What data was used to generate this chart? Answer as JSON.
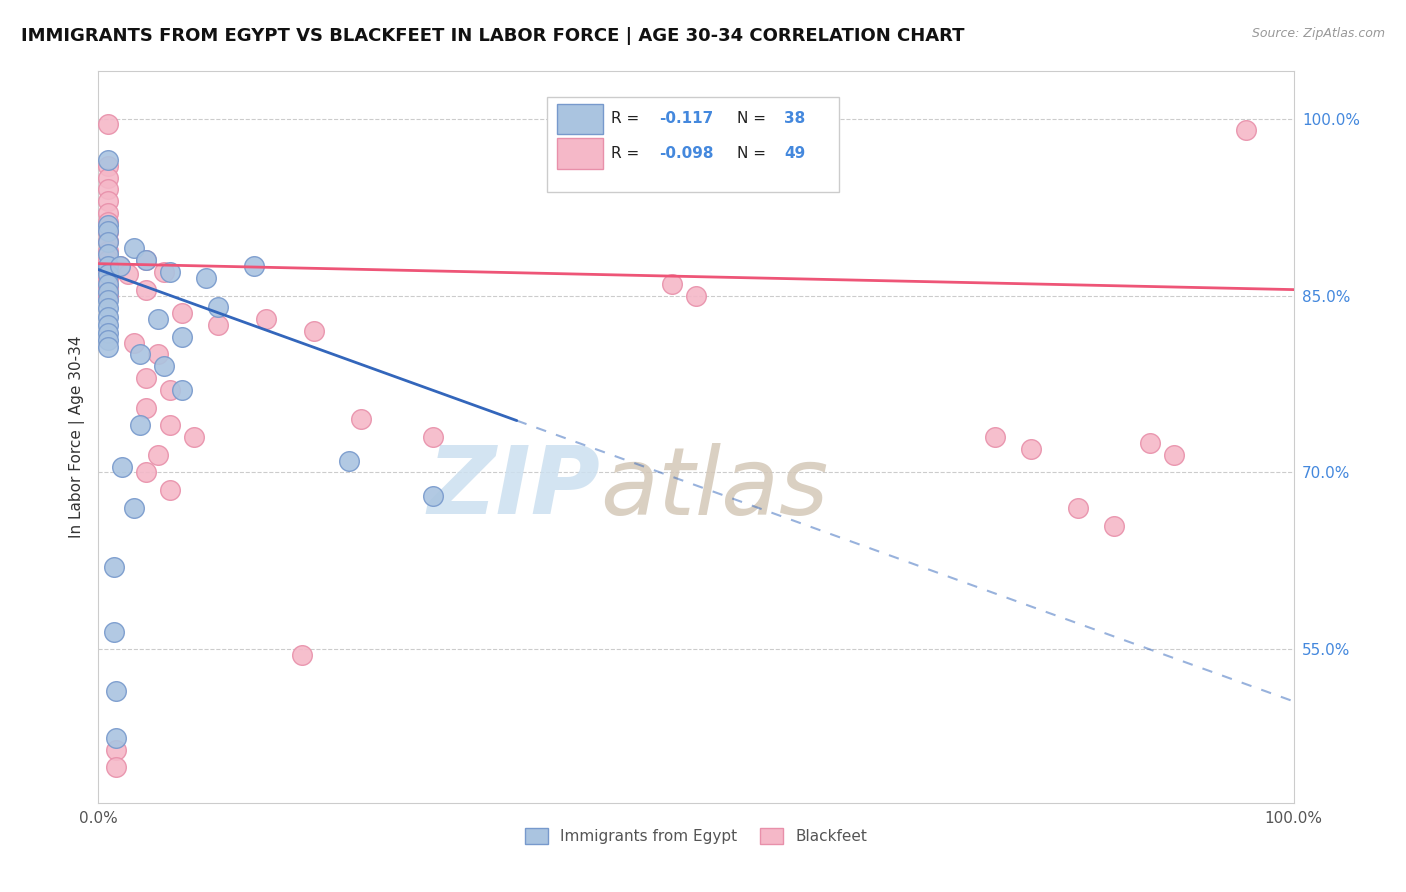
{
  "title": "IMMIGRANTS FROM EGYPT VS BLACKFEET IN LABOR FORCE | AGE 30-34 CORRELATION CHART",
  "source": "Source: ZipAtlas.com",
  "ylabel": "In Labor Force | Age 30-34",
  "xlim": [
    0.0,
    1.0
  ],
  "ylim": [
    0.42,
    1.04
  ],
  "yticks": [
    0.55,
    0.7,
    0.85,
    1.0
  ],
  "ytick_labels": [
    "55.0%",
    "70.0%",
    "85.0%",
    "100.0%"
  ],
  "xtick_labels": [
    "0.0%",
    "100.0%"
  ],
  "legend_box": {
    "blue_r": "-0.117",
    "blue_n": "38",
    "pink_r": "-0.098",
    "pink_n": "49"
  },
  "blue_scatter": [
    [
      0.008,
      0.965
    ],
    [
      0.008,
      0.91
    ],
    [
      0.008,
      0.905
    ],
    [
      0.008,
      0.895
    ],
    [
      0.008,
      0.885
    ],
    [
      0.008,
      0.875
    ],
    [
      0.008,
      0.868
    ],
    [
      0.008,
      0.86
    ],
    [
      0.008,
      0.853
    ],
    [
      0.008,
      0.846
    ],
    [
      0.008,
      0.839
    ],
    [
      0.008,
      0.832
    ],
    [
      0.008,
      0.825
    ],
    [
      0.008,
      0.818
    ],
    [
      0.008,
      0.812
    ],
    [
      0.008,
      0.806
    ],
    [
      0.018,
      0.875
    ],
    [
      0.03,
      0.89
    ],
    [
      0.04,
      0.88
    ],
    [
      0.06,
      0.87
    ],
    [
      0.09,
      0.865
    ],
    [
      0.05,
      0.83
    ],
    [
      0.07,
      0.815
    ],
    [
      0.1,
      0.84
    ],
    [
      0.13,
      0.875
    ],
    [
      0.035,
      0.8
    ],
    [
      0.055,
      0.79
    ],
    [
      0.07,
      0.77
    ],
    [
      0.035,
      0.74
    ],
    [
      0.02,
      0.705
    ],
    [
      0.03,
      0.67
    ],
    [
      0.013,
      0.62
    ],
    [
      0.013,
      0.565
    ],
    [
      0.015,
      0.515
    ],
    [
      0.015,
      0.475
    ],
    [
      0.21,
      0.71
    ],
    [
      0.28,
      0.68
    ]
  ],
  "pink_scatter": [
    [
      0.008,
      0.995
    ],
    [
      0.008,
      0.96
    ],
    [
      0.008,
      0.95
    ],
    [
      0.008,
      0.94
    ],
    [
      0.008,
      0.93
    ],
    [
      0.008,
      0.92
    ],
    [
      0.008,
      0.912
    ],
    [
      0.008,
      0.904
    ],
    [
      0.008,
      0.896
    ],
    [
      0.008,
      0.888
    ],
    [
      0.008,
      0.88
    ],
    [
      0.008,
      0.872
    ],
    [
      0.008,
      0.864
    ],
    [
      0.008,
      0.857
    ],
    [
      0.008,
      0.85
    ],
    [
      0.018,
      0.875
    ],
    [
      0.025,
      0.868
    ],
    [
      0.04,
      0.88
    ],
    [
      0.055,
      0.87
    ],
    [
      0.04,
      0.855
    ],
    [
      0.07,
      0.835
    ],
    [
      0.1,
      0.825
    ],
    [
      0.03,
      0.81
    ],
    [
      0.05,
      0.8
    ],
    [
      0.04,
      0.78
    ],
    [
      0.06,
      0.77
    ],
    [
      0.04,
      0.755
    ],
    [
      0.06,
      0.74
    ],
    [
      0.08,
      0.73
    ],
    [
      0.05,
      0.715
    ],
    [
      0.04,
      0.7
    ],
    [
      0.06,
      0.685
    ],
    [
      0.14,
      0.83
    ],
    [
      0.18,
      0.82
    ],
    [
      0.22,
      0.745
    ],
    [
      0.28,
      0.73
    ],
    [
      0.48,
      0.86
    ],
    [
      0.5,
      0.85
    ],
    [
      0.75,
      0.73
    ],
    [
      0.78,
      0.72
    ],
    [
      0.82,
      0.67
    ],
    [
      0.85,
      0.655
    ],
    [
      0.88,
      0.725
    ],
    [
      0.9,
      0.715
    ],
    [
      0.96,
      0.99
    ],
    [
      0.17,
      0.545
    ],
    [
      0.015,
      0.465
    ],
    [
      0.015,
      0.45
    ]
  ],
  "blue_line_solid": [
    [
      0.0,
      0.872
    ],
    [
      0.35,
      0.744
    ]
  ],
  "blue_line_dashed": [
    [
      0.35,
      0.744
    ],
    [
      1.0,
      0.506
    ]
  ],
  "pink_line": [
    [
      0.0,
      0.877
    ],
    [
      1.0,
      0.855
    ]
  ],
  "blue_scatter_color": "#aac4e0",
  "blue_scatter_edge": "#7799cc",
  "pink_scatter_color": "#f5b8c8",
  "pink_scatter_edge": "#e890aa",
  "blue_line_color": "#3366bb",
  "pink_line_color": "#ee5577",
  "watermark_zip_color": "#cce0f0",
  "watermark_atlas_color": "#d4c8b8",
  "background_color": "#ffffff",
  "grid_color": "#cccccc",
  "title_fontsize": 13,
  "axis_label_fontsize": 11,
  "tick_fontsize": 11
}
